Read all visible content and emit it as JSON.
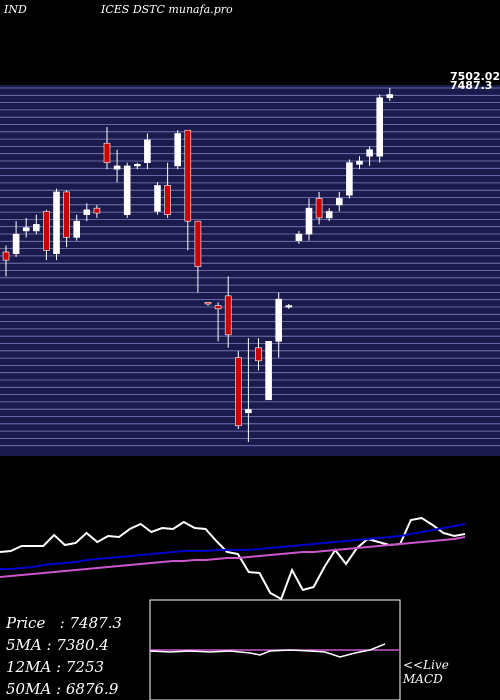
{
  "header": {
    "left": "IND",
    "right": "ICES DSTC munafa.pro"
  },
  "stats": {
    "price_label": "Price",
    "price": "7487.3",
    "ma5_label": "5MA",
    "ma5": "7380.4",
    "ma12_label": "12MA",
    "ma12": "7253",
    "ma50_label": "50MA",
    "ma50": "6876.9"
  },
  "macd_panel": {
    "label1": "<<Live",
    "label2": "MACD"
  },
  "colors": {
    "background": "#000000",
    "price_panel": "#1a1a4d",
    "grid_line": "#8080c0",
    "up_candle": "#ffffff",
    "down_candle": "#cc0000",
    "ma_short": "#ffffff",
    "ma_mid": "#0000cc",
    "ma_long": "#cc55cc"
  },
  "chart_data": {
    "type": "candlestick",
    "price_labels": [
      "7502.02",
      "7487.3"
    ],
    "candles": [
      {
        "o": 6325,
        "h": 6345,
        "l": 6250,
        "c": 6300
      },
      {
        "o": 6320,
        "h": 6420,
        "l": 6310,
        "c": 6380
      },
      {
        "o": 6390,
        "h": 6430,
        "l": 6370,
        "c": 6400
      },
      {
        "o": 6390,
        "h": 6440,
        "l": 6380,
        "c": 6410
      },
      {
        "o": 6450,
        "h": 6455,
        "l": 6300,
        "c": 6330
      },
      {
        "o": 6320,
        "h": 6520,
        "l": 6300,
        "c": 6510
      },
      {
        "o": 6510,
        "h": 6515,
        "l": 6340,
        "c": 6370
      },
      {
        "o": 6370,
        "h": 6440,
        "l": 6360,
        "c": 6420
      },
      {
        "o": 6440,
        "h": 6475,
        "l": 6420,
        "c": 6455
      },
      {
        "o": 6460,
        "h": 6470,
        "l": 6430,
        "c": 6445
      },
      {
        "o": 6660,
        "h": 6710,
        "l": 6580,
        "c": 6600
      },
      {
        "o": 6580,
        "h": 6640,
        "l": 6540,
        "c": 6590
      },
      {
        "o": 6440,
        "h": 6600,
        "l": 6430,
        "c": 6590
      },
      {
        "o": 6590,
        "h": 6600,
        "l": 6580,
        "c": 6595
      },
      {
        "o": 6600,
        "h": 6690,
        "l": 6580,
        "c": 6670
      },
      {
        "o": 6450,
        "h": 6540,
        "l": 6440,
        "c": 6530
      },
      {
        "o": 6530,
        "h": 6600,
        "l": 6430,
        "c": 6440
      },
      {
        "o": 6590,
        "h": 6700,
        "l": 6580,
        "c": 6690
      },
      {
        "o": 6700,
        "h": 6700,
        "l": 6330,
        "c": 6420
      },
      {
        "o": 6420,
        "h": 6420,
        "l": 6200,
        "c": 6280
      },
      {
        "o": 6170,
        "h": 6170,
        "l": 6160,
        "c": 6165
      },
      {
        "o": 6160,
        "h": 6170,
        "l": 6050,
        "c": 6150
      },
      {
        "o": 6190,
        "h": 6250,
        "l": 6030,
        "c": 6070
      },
      {
        "o": 6000,
        "h": 6020,
        "l": 5780,
        "c": 5790
      },
      {
        "o": 5830,
        "h": 6060,
        "l": 5740,
        "c": 5840
      },
      {
        "o": 6030,
        "h": 6060,
        "l": 5960,
        "c": 5990
      },
      {
        "o": 5870,
        "h": 6045,
        "l": 5870,
        "c": 6050
      },
      {
        "o": 6050,
        "h": 6200,
        "l": 6000,
        "c": 6180
      },
      {
        "o": 6160,
        "h": 6165,
        "l": 6150,
        "c": 6160
      },
      {
        "o": 6360,
        "h": 6390,
        "l": 6350,
        "c": 6380
      },
      {
        "o": 6380,
        "h": 6490,
        "l": 6360,
        "c": 6460
      },
      {
        "o": 6490,
        "h": 6510,
        "l": 6410,
        "c": 6430
      },
      {
        "o": 6430,
        "h": 6460,
        "l": 6420,
        "c": 6450
      },
      {
        "o": 6470,
        "h": 6510,
        "l": 6450,
        "c": 6490
      },
      {
        "o": 6500,
        "h": 6610,
        "l": 6490,
        "c": 6600
      },
      {
        "o": 6595,
        "h": 6620,
        "l": 6580,
        "c": 6605
      },
      {
        "o": 6620,
        "h": 6650,
        "l": 6590,
        "c": 6640
      },
      {
        "o": 6620,
        "h": 6810,
        "l": 6600,
        "c": 6800
      },
      {
        "o": 6800,
        "h": 6830,
        "l": 6790,
        "c": 6810
      }
    ],
    "moving_averages": [
      {
        "name": "5MA",
        "color": "#ffffff",
        "values": [
          552,
          551,
          546,
          546,
          546,
          535,
          545,
          543,
          533,
          542,
          536,
          537,
          529,
          524,
          532,
          528,
          529,
          522,
          528,
          529,
          541,
          552,
          554,
          572,
          573,
          593,
          599,
          570,
          590,
          587,
          567,
          550,
          564,
          548,
          539,
          542,
          545,
          544,
          520,
          518,
          525,
          533,
          536,
          534
        ]
      },
      {
        "name": "12MA",
        "color": "#0000cc",
        "values": [
          569,
          569,
          568,
          567,
          565,
          564,
          563,
          562,
          560,
          559,
          558,
          557,
          556,
          555,
          554,
          553,
          552,
          551,
          551,
          551,
          550,
          550,
          550,
          550,
          549,
          548,
          547,
          546,
          545,
          544,
          543,
          542,
          541,
          540,
          539,
          538,
          537,
          536,
          534,
          532,
          530,
          528,
          526,
          524
        ]
      },
      {
        "name": "50MA",
        "color": "#cc55cc",
        "values": [
          577,
          576,
          575,
          574,
          573,
          572,
          571,
          570,
          569,
          568,
          567,
          566,
          565,
          564,
          563,
          562,
          561,
          561,
          560,
          560,
          559,
          558,
          558,
          557,
          556,
          555,
          554,
          553,
          552,
          552,
          551,
          550,
          549,
          548,
          547,
          546,
          545,
          544,
          543,
          542,
          541,
          540,
          539,
          537
        ]
      }
    ]
  }
}
